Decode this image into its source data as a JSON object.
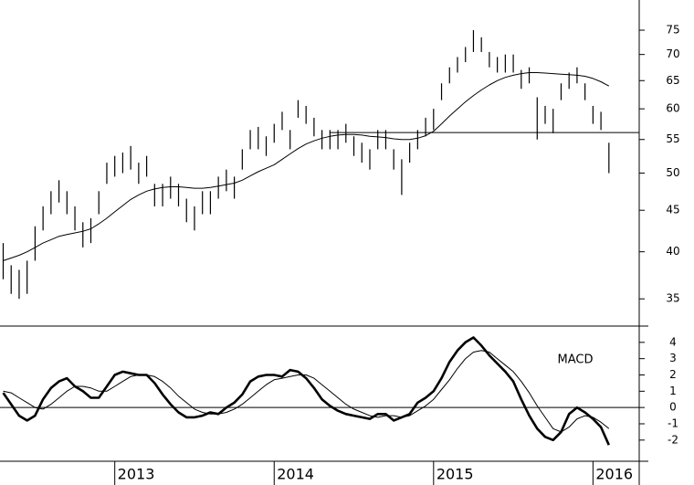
{
  "chart_data": [
    {
      "type": "hilo",
      "x": [
        2012.3,
        2012.35,
        2012.4,
        2012.45,
        2012.5,
        2012.55,
        2012.6,
        2012.65,
        2012.7,
        2012.75,
        2012.8,
        2012.85,
        2012.9,
        2012.95,
        2013.0,
        2013.05,
        2013.1,
        2013.15,
        2013.2,
        2013.25,
        2013.3,
        2013.35,
        2013.4,
        2013.45,
        2013.5,
        2013.55,
        2013.6,
        2013.65,
        2013.7,
        2013.75,
        2013.8,
        2013.85,
        2013.9,
        2013.95,
        2014.0,
        2014.05,
        2014.1,
        2014.15,
        2014.2,
        2014.25,
        2014.3,
        2014.35,
        2014.4,
        2014.45,
        2014.5,
        2014.55,
        2014.6,
        2014.65,
        2014.7,
        2014.75,
        2014.8,
        2014.85,
        2014.9,
        2014.95,
        2015.0,
        2015.05,
        2015.1,
        2015.15,
        2015.2,
        2015.25,
        2015.3,
        2015.35,
        2015.4,
        2015.45,
        2015.5,
        2015.55,
        2015.6,
        2015.65,
        2015.7,
        2015.75,
        2015.8,
        2015.85,
        2015.9,
        2015.95,
        2016.0,
        2016.05,
        2016.1
      ],
      "high": [
        41,
        38.5,
        38,
        39,
        43,
        45.5,
        47.5,
        49,
        47.5,
        45.5,
        43.5,
        44,
        47.5,
        51.5,
        52.5,
        53,
        54,
        51.5,
        52.5,
        48.5,
        48.5,
        49.5,
        48.5,
        46.5,
        45.5,
        47.5,
        47.5,
        49.5,
        50.5,
        49.5,
        53.5,
        56.5,
        57,
        55.5,
        57.5,
        59.5,
        56.5,
        61.5,
        60.5,
        58.5,
        56.5,
        56.5,
        56.5,
        57.5,
        55.5,
        54.5,
        53.5,
        56.5,
        56.5,
        53.5,
        52,
        54.5,
        56.5,
        58.5,
        60,
        64.5,
        67.5,
        69.5,
        71.5,
        75,
        73.5,
        70.5,
        69.5,
        70,
        70,
        67,
        67.5,
        62,
        60.5,
        60,
        64.5,
        66.5,
        67.5,
        64.5,
        60.5,
        59.5,
        54.5
      ],
      "low": [
        37,
        35.5,
        35,
        35.5,
        39,
        42.5,
        44.5,
        46,
        44.5,
        42.5,
        40.5,
        41,
        44.5,
        48.5,
        49.5,
        50,
        50.5,
        48.5,
        49.5,
        45.5,
        45.5,
        46.5,
        45.5,
        43.5,
        42.5,
        44.5,
        44.5,
        46.5,
        47.5,
        46.5,
        50.5,
        53.5,
        53.5,
        52.5,
        54.5,
        56.5,
        53.5,
        58.5,
        57.5,
        55.5,
        53.5,
        53.5,
        53.5,
        54.5,
        52.5,
        51.5,
        50.5,
        53.5,
        53.5,
        50.5,
        47,
        51.5,
        53.5,
        55.5,
        56.5,
        61.5,
        64.5,
        66.5,
        68.5,
        70.5,
        70.5,
        67.5,
        66.5,
        66.5,
        66.5,
        63.5,
        64.5,
        55,
        57.5,
        56,
        61.5,
        63.5,
        64.5,
        61.5,
        57.5,
        56.5,
        50
      ],
      "ma": {
        "color": "#000000",
        "values": [
          39.0,
          39.3,
          39.6,
          40.0,
          40.5,
          41.0,
          41.4,
          41.8,
          42.0,
          42.2,
          42.4,
          42.7,
          43.3,
          44.0,
          44.8,
          45.6,
          46.4,
          47.0,
          47.5,
          47.8,
          48.0,
          48.1,
          48.1,
          48.0,
          47.9,
          47.9,
          48.0,
          48.2,
          48.4,
          48.6,
          49.0,
          49.6,
          50.2,
          50.7,
          51.2,
          52.0,
          52.8,
          53.6,
          54.3,
          54.8,
          55.2,
          55.5,
          55.7,
          55.8,
          55.8,
          55.7,
          55.5,
          55.4,
          55.3,
          55.1,
          55.0,
          55.0,
          55.2,
          55.6,
          56.3,
          57.5,
          58.8,
          60.0,
          61.2,
          62.3,
          63.3,
          64.2,
          65.0,
          65.6,
          66.0,
          66.3,
          66.5,
          66.5,
          66.4,
          66.3,
          66.2,
          66.1,
          66.0,
          65.8,
          65.4,
          64.8,
          64.0
        ]
      },
      "color": "#000000",
      "level_line": {
        "value": 56.1,
        "x": [
          2014.35,
          2016.29
        ]
      },
      "xlim": [
        2012.28,
        2016.29
      ],
      "ylim": [
        32.4,
        81.7
      ],
      "log_scale": true,
      "yticks": [
        35,
        40,
        45,
        50,
        55,
        60,
        65,
        70,
        75
      ]
    },
    {
      "type": "line",
      "x": [
        2012.3,
        2012.35,
        2012.4,
        2012.45,
        2012.5,
        2012.55,
        2012.6,
        2012.65,
        2012.7,
        2012.75,
        2012.8,
        2012.85,
        2012.9,
        2012.95,
        2013.0,
        2013.05,
        2013.1,
        2013.15,
        2013.2,
        2013.25,
        2013.3,
        2013.35,
        2013.4,
        2013.45,
        2013.5,
        2013.55,
        2013.6,
        2013.65,
        2013.7,
        2013.75,
        2013.8,
        2013.85,
        2013.9,
        2013.95,
        2014.0,
        2014.05,
        2014.1,
        2014.15,
        2014.2,
        2014.25,
        2014.3,
        2014.35,
        2014.4,
        2014.45,
        2014.5,
        2014.55,
        2014.6,
        2014.65,
        2014.7,
        2014.75,
        2014.8,
        2014.85,
        2014.9,
        2014.95,
        2015.0,
        2015.05,
        2015.1,
        2015.15,
        2015.2,
        2015.25,
        2015.3,
        2015.35,
        2015.4,
        2015.45,
        2015.5,
        2015.55,
        2015.6,
        2015.65,
        2015.7,
        2015.75,
        2015.8,
        2015.85,
        2015.9,
        2015.95,
        2016.0,
        2016.05,
        2016.1
      ],
      "series": [
        {
          "name": "MACD",
          "color": "#000000",
          "values": [
            0.9,
            0.2,
            -0.5,
            -0.8,
            -0.5,
            0.5,
            1.2,
            1.6,
            1.8,
            1.3,
            1.0,
            0.6,
            0.6,
            1.3,
            2.0,
            2.2,
            2.1,
            2.0,
            2.0,
            1.5,
            0.8,
            0.2,
            -0.3,
            -0.6,
            -0.6,
            -0.5,
            -0.3,
            -0.4,
            0,
            0.3,
            0.8,
            1.6,
            1.9,
            2.0,
            2.0,
            1.9,
            2.3,
            2.2,
            1.8,
            1.2,
            0.5,
            0.1,
            -0.2,
            -0.4,
            -0.5,
            -0.6,
            -0.7,
            -0.4,
            -0.4,
            -0.8,
            -0.6,
            -0.4,
            0.3,
            0.6,
            1.0,
            1.8,
            2.8,
            3.5,
            4.0,
            4.3,
            3.8,
            3.2,
            2.7,
            2.2,
            1.6,
            0.5,
            -0.5,
            -1.3,
            -1.8,
            -2.0,
            -1.5,
            -0.4,
            0.0,
            -0.3,
            -0.7,
            -1.2,
            -2.3
          ]
        },
        {
          "color": "#000000",
          "values": [
            1.0,
            0.9,
            0.6,
            0.3,
            0.0,
            -0.1,
            0.2,
            0.6,
            1.0,
            1.3,
            1.3,
            1.2,
            1.0,
            1.0,
            1.3,
            1.6,
            1.9,
            2.0,
            2.0,
            1.9,
            1.6,
            1.2,
            0.7,
            0.3,
            -0.1,
            -0.3,
            -0.4,
            -0.4,
            -0.3,
            -0.1,
            0.2,
            0.6,
            1.0,
            1.4,
            1.7,
            1.8,
            1.9,
            2.0,
            2.0,
            1.8,
            1.4,
            1.0,
            0.6,
            0.2,
            -0.1,
            -0.3,
            -0.5,
            -0.6,
            -0.5,
            -0.5,
            -0.6,
            -0.5,
            -0.2,
            0.1,
            0.5,
            1.1,
            1.7,
            2.4,
            3.0,
            3.4,
            3.5,
            3.4,
            3.0,
            2.6,
            2.2,
            1.6,
            0.9,
            0.1,
            -0.6,
            -1.3,
            -1.5,
            -1.2,
            -0.7,
            -0.5,
            -0.6,
            -0.9,
            -1.3
          ]
        }
      ],
      "zero_line": 0,
      "xlim": [
        2012.28,
        2016.29
      ],
      "xticks": [
        2013,
        2014,
        2015,
        2016
      ],
      "ylim": [
        -3.3,
        5
      ],
      "yticks": [
        -2,
        -1,
        0,
        1,
        2,
        3,
        4
      ]
    }
  ]
}
